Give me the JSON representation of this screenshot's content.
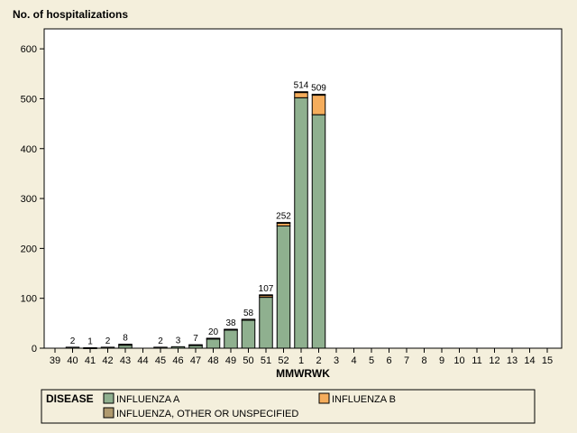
{
  "chart_data": {
    "type": "bar",
    "stacked": true,
    "ylabel": "No. of hospitalizations",
    "xlabel": "MMWRWK",
    "ylim": [
      0,
      640
    ],
    "yticks": [
      0,
      100,
      200,
      300,
      400,
      500,
      600
    ],
    "grid": false,
    "categories": [
      "39",
      "40",
      "41",
      "42",
      "43",
      "44",
      "45",
      "46",
      "47",
      "48",
      "49",
      "50",
      "51",
      "52",
      "1",
      "2",
      "3",
      "4",
      "5",
      "6",
      "7",
      "8",
      "9",
      "10",
      "11",
      "12",
      "13",
      "14",
      "15"
    ],
    "totals": [
      null,
      "2",
      "1",
      "2",
      "8",
      null,
      "2",
      "3",
      "7",
      "20",
      "38",
      "58",
      "107",
      "252",
      "514",
      "509",
      null,
      null,
      null,
      null,
      null,
      null,
      null,
      null,
      null,
      null,
      null,
      null,
      null
    ],
    "series": [
      {
        "name": "INFLUENZA A",
        "color": "#8fb08f",
        "values": [
          0,
          2,
          1,
          2,
          6,
          0,
          2,
          3,
          6,
          19,
          37,
          56,
          102,
          245,
          502,
          468,
          0,
          0,
          0,
          0,
          0,
          0,
          0,
          0,
          0,
          0,
          0,
          0,
          0
        ]
      },
      {
        "name": "INFLUENZA B",
        "color": "#f5ad5c",
        "values": [
          0,
          0,
          0,
          0,
          0,
          0,
          0,
          0,
          0,
          0,
          0,
          0,
          4,
          6,
          11,
          39,
          0,
          0,
          0,
          0,
          0,
          0,
          0,
          0,
          0,
          0,
          0,
          0,
          0
        ]
      },
      {
        "name": "INFLUENZA, OTHER OR UNSPECIFIED",
        "color": "#b09a6e",
        "values": [
          0,
          0,
          0,
          0,
          2,
          0,
          0,
          0,
          1,
          1,
          1,
          2,
          1,
          1,
          1,
          2,
          0,
          0,
          0,
          0,
          0,
          0,
          0,
          0,
          0,
          0,
          0,
          0,
          0
        ]
      }
    ],
    "legend": {
      "title": "DISEASE",
      "placement": "bottom"
    }
  }
}
